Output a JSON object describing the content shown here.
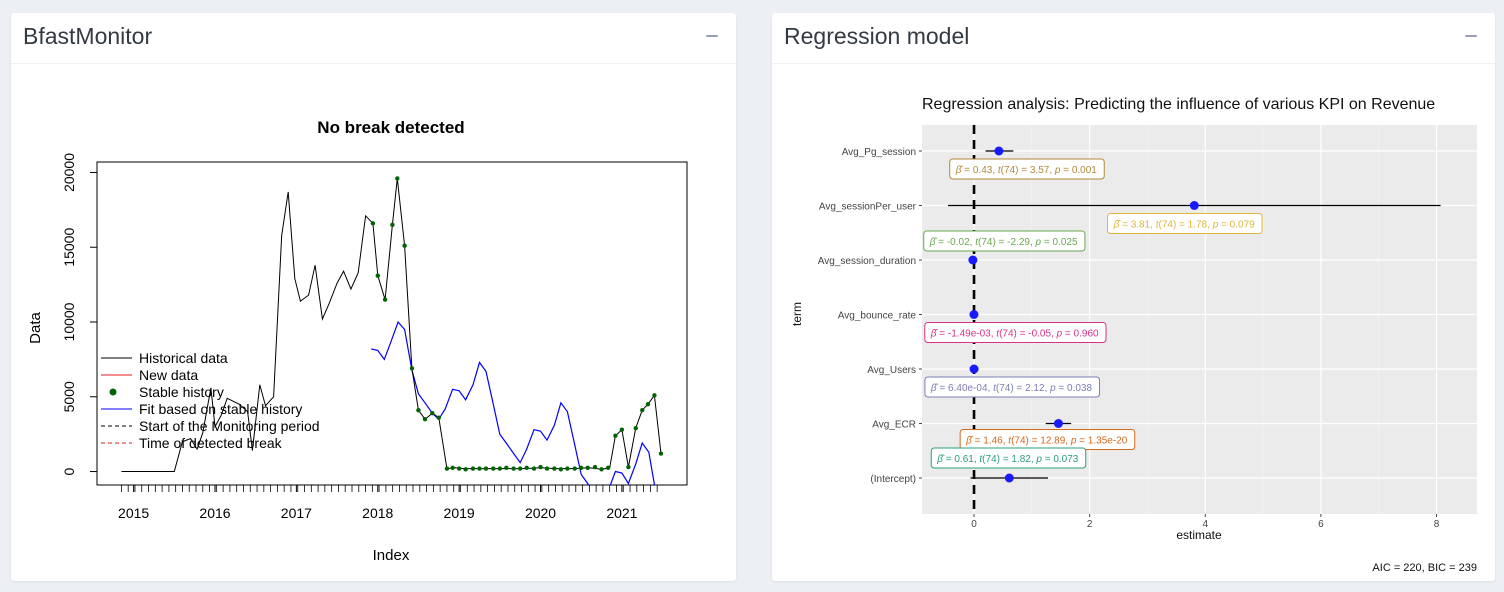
{
  "panels": {
    "left": {
      "title": "BfastMonitor"
    },
    "right": {
      "title": "Regression model"
    }
  },
  "colors": {
    "historical": "#000000",
    "new_data": "#e41a1c",
    "stable": "#006400",
    "fit": "#0000ff",
    "point_blue": "#1a1aff"
  },
  "chart_data": [
    {
      "type": "line",
      "title": "No break detected",
      "xlabel": "Index",
      "ylabel": "Data",
      "xlim": [
        2014.55,
        2021.8
      ],
      "ylim": [
        -900,
        20700
      ],
      "x_ticks": [
        2015,
        2016,
        2017,
        2018,
        2019,
        2020,
        2021
      ],
      "y_ticks": [
        0,
        5000,
        10000,
        15000,
        20000
      ],
      "legend_position": "bottom-left",
      "legend": [
        "Historical data",
        "New data",
        "Stable history",
        "Fit based on stable history",
        "Start of the Monitoring period",
        "Time of detected break"
      ],
      "series": [
        {
          "name": "Historical data",
          "points": [
            [
              2014.85,
              0
            ],
            [
              2015.5,
              0
            ],
            [
              2015.6,
              2000
            ],
            [
              2015.7,
              2200
            ],
            [
              2015.78,
              1500
            ],
            [
              2015.85,
              2600
            ],
            [
              2015.95,
              5600
            ],
            [
              2016.0,
              3000
            ],
            [
              2016.08,
              3800
            ],
            [
              2016.15,
              4900
            ],
            [
              2016.3,
              4500
            ],
            [
              2016.4,
              4000
            ],
            [
              2016.46,
              1400
            ],
            [
              2016.55,
              5800
            ],
            [
              2016.62,
              4400
            ],
            [
              2016.72,
              5000
            ],
            [
              2016.82,
              15800
            ],
            [
              2016.9,
              18700
            ],
            [
              2016.98,
              12900
            ],
            [
              2017.05,
              11400
            ],
            [
              2017.15,
              11800
            ],
            [
              2017.23,
              13800
            ],
            [
              2017.32,
              10200
            ],
            [
              2017.4,
              11200
            ],
            [
              2017.5,
              12600
            ],
            [
              2017.58,
              13400
            ],
            [
              2017.67,
              12200
            ],
            [
              2017.76,
              13300
            ],
            [
              2017.85,
              17100
            ],
            [
              2017.94,
              16600
            ],
            [
              2018.0,
              13100
            ],
            [
              2018.09,
              11500
            ],
            [
              2018.18,
              16500
            ],
            [
              2018.24,
              19600
            ],
            [
              2018.33,
              15100
            ],
            [
              2018.42,
              6900
            ],
            [
              2018.5,
              4100
            ],
            [
              2018.58,
              3500
            ],
            [
              2018.67,
              3900
            ],
            [
              2018.75,
              3600
            ],
            [
              2018.85,
              200
            ],
            [
              2018.95,
              250
            ],
            [
              2019.05,
              200
            ],
            [
              2019.2,
              200
            ],
            [
              2019.4,
              200
            ],
            [
              2019.6,
              200
            ],
            [
              2019.8,
              200
            ],
            [
              2020.0,
              250
            ],
            [
              2020.2,
              200
            ],
            [
              2020.4,
              200
            ],
            [
              2020.6,
              250
            ],
            [
              2020.75,
              150
            ],
            [
              2020.85,
              250
            ],
            [
              2020.92,
              2400
            ],
            [
              2021.0,
              2800
            ],
            [
              2021.08,
              300
            ],
            [
              2021.17,
              2900
            ],
            [
              2021.25,
              4100
            ],
            [
              2021.32,
              4500
            ],
            [
              2021.4,
              5100
            ],
            [
              2021.48,
              1200
            ]
          ]
        },
        {
          "name": "Stable history",
          "points": [
            [
              2017.94,
              16600
            ],
            [
              2018.0,
              13100
            ],
            [
              2018.09,
              11500
            ],
            [
              2018.18,
              16500
            ],
            [
              2018.24,
              19600
            ],
            [
              2018.33,
              15100
            ],
            [
              2018.42,
              6900
            ],
            [
              2018.5,
              4100
            ],
            [
              2018.58,
              3500
            ],
            [
              2018.67,
              3900
            ],
            [
              2018.75,
              3600
            ],
            [
              2018.85,
              200
            ],
            [
              2018.92,
              250
            ],
            [
              2019.0,
              200
            ],
            [
              2019.08,
              150
            ],
            [
              2019.17,
              200
            ],
            [
              2019.25,
              200
            ],
            [
              2019.33,
              200
            ],
            [
              2019.42,
              200
            ],
            [
              2019.5,
              200
            ],
            [
              2019.58,
              250
            ],
            [
              2019.67,
              200
            ],
            [
              2019.75,
              200
            ],
            [
              2019.83,
              250
            ],
            [
              2019.92,
              200
            ],
            [
              2020.0,
              300
            ],
            [
              2020.08,
              200
            ],
            [
              2020.17,
              200
            ],
            [
              2020.25,
              150
            ],
            [
              2020.33,
              200
            ],
            [
              2020.42,
              200
            ],
            [
              2020.5,
              250
            ],
            [
              2020.58,
              250
            ],
            [
              2020.67,
              300
            ],
            [
              2020.75,
              150
            ],
            [
              2020.83,
              250
            ],
            [
              2020.92,
              2400
            ],
            [
              2021.0,
              2800
            ],
            [
              2021.08,
              300
            ],
            [
              2021.17,
              2900
            ],
            [
              2021.25,
              4100
            ],
            [
              2021.32,
              4500
            ],
            [
              2021.4,
              5100
            ],
            [
              2021.48,
              1200
            ]
          ]
        },
        {
          "name": "Fit based on stable history",
          "points": [
            [
              2017.92,
              8200
            ],
            [
              2018.0,
              8100
            ],
            [
              2018.08,
              7500
            ],
            [
              2018.17,
              8800
            ],
            [
              2018.25,
              10000
            ],
            [
              2018.33,
              9500
            ],
            [
              2018.42,
              6800
            ],
            [
              2018.5,
              5200
            ],
            [
              2018.58,
              4600
            ],
            [
              2018.67,
              3900
            ],
            [
              2018.75,
              3500
            ],
            [
              2018.83,
              4200
            ],
            [
              2018.92,
              5500
            ],
            [
              2019.0,
              5400
            ],
            [
              2019.08,
              4800
            ],
            [
              2019.17,
              5800
            ],
            [
              2019.25,
              7300
            ],
            [
              2019.33,
              6700
            ],
            [
              2019.42,
              4500
            ],
            [
              2019.5,
              2500
            ],
            [
              2019.58,
              1900
            ],
            [
              2019.67,
              1200
            ],
            [
              2019.75,
              600
            ],
            [
              2019.83,
              1500
            ],
            [
              2019.92,
              2800
            ],
            [
              2020.0,
              2700
            ],
            [
              2020.08,
              2100
            ],
            [
              2020.17,
              3100
            ],
            [
              2020.25,
              4600
            ],
            [
              2020.33,
              4000
            ],
            [
              2020.42,
              1800
            ],
            [
              2020.5,
              -200
            ],
            [
              2020.58,
              -800
            ],
            [
              2020.67,
              -1500
            ],
            [
              2020.75,
              -2200
            ],
            [
              2020.83,
              -1300
            ],
            [
              2020.92,
              0
            ],
            [
              2021.0,
              -100
            ],
            [
              2021.08,
              -800
            ],
            [
              2021.17,
              500
            ],
            [
              2021.25,
              1900
            ],
            [
              2021.33,
              1300
            ],
            [
              2021.42,
              -1500
            ]
          ]
        }
      ]
    },
    {
      "type": "scatter",
      "title": "Regression analysis: Predicting the influence of various KPI on Revenue",
      "xlabel": "estimate",
      "ylabel": "term",
      "xlim": [
        -0.9,
        8.7
      ],
      "x_ticks": [
        0,
        2,
        4,
        6,
        8
      ],
      "grid": true,
      "reference_line_x": 0,
      "caption": "AIC = 220, BIC = 239",
      "terms": [
        {
          "term": "Avg_Pg_session",
          "estimate": 0.43,
          "ci": [
            0.2,
            0.68
          ],
          "label_pre": "= 0.43,  ",
          "label_post": "(74) = 3.57,  ",
          "label_end": " = 0.001",
          "color": "#b08a3a"
        },
        {
          "term": "Avg_sessionPer_user",
          "estimate": 3.81,
          "ci": [
            -0.45,
            8.07
          ],
          "label_pre": "= 3.81,  ",
          "label_post": "(74) = 1.78,  ",
          "label_end": " = 0.079",
          "color": "#e0b63a"
        },
        {
          "term": "Avg_session_duration",
          "estimate": -0.02,
          "ci": [
            -0.04,
            0.0
          ],
          "label_pre": "= -0.02,  ",
          "label_post": "(74) = -2.29,  ",
          "label_end": " = 0.025",
          "color": "#6aa84f"
        },
        {
          "term": "Avg_bounce_rate",
          "estimate": -0.00149,
          "ci": [
            -0.06,
            0.06
          ],
          "label_pre": "= -1.49e-03,  ",
          "label_post": "(74) = -0.05,  ",
          "label_end": " = 0.960",
          "color": "#d6338a"
        },
        {
          "term": "Avg_Users",
          "estimate": 0.00064,
          "ci": [
            0.0,
            0.0013
          ],
          "label_pre": "= 6.40e-04,  ",
          "label_post": "(74) = 2.12,  ",
          "label_end": " = 0.038",
          "color": "#7b7db8"
        },
        {
          "term": "Avg_ECR",
          "estimate": 1.46,
          "ci": [
            1.24,
            1.68
          ],
          "label_pre": "= 1.46,  ",
          "label_post": "(74) = 12.89,  ",
          "label_end": " = 1.35e-20",
          "color": "#d4691f"
        },
        {
          "term": "(Intercept)",
          "estimate": 0.61,
          "ci": [
            -0.06,
            1.28
          ],
          "label_pre": "= 0.61,  ",
          "label_post": "(74) = 1.82,  ",
          "label_end": " = 0.073",
          "color": "#2a9d7e"
        }
      ]
    }
  ]
}
